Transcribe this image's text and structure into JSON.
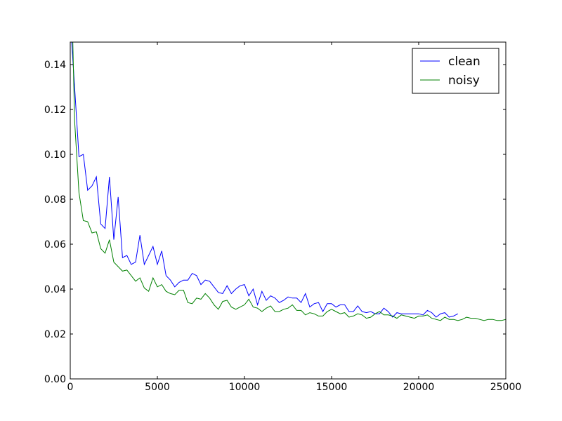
{
  "chart_data": {
    "type": "line",
    "xlim": [
      0,
      25000
    ],
    "xticks": [
      0,
      5000,
      10000,
      15000,
      20000,
      25000
    ],
    "ylim": [
      0,
      0.15
    ],
    "yticks": [
      {
        "value": 0,
        "label": "0.00"
      },
      {
        "value": 0.02,
        "label": "0.02"
      },
      {
        "value": 0.04,
        "label": "0.04"
      },
      {
        "value": 0.06,
        "label": "0.06"
      },
      {
        "value": 0.08,
        "label": "0.08"
      },
      {
        "value": 0.1,
        "label": "0.10"
      },
      {
        "value": 0.12,
        "label": "0.12"
      },
      {
        "value": 0.14,
        "label": "0.14"
      }
    ],
    "legend": "upper right",
    "grid": false,
    "series": [
      {
        "name": "clean",
        "color": "#0000ff",
        "x": [
          0,
          250,
          500,
          750,
          1000,
          1250,
          1500,
          1750,
          2000,
          2250,
          2500,
          2750,
          3000,
          3250,
          3500,
          3750,
          4000,
          4250,
          4500,
          4750,
          5000,
          5250,
          5500,
          5750,
          6000,
          6250,
          6500,
          6750,
          7000,
          7250,
          7500,
          7750,
          8000,
          8250,
          8500,
          8750,
          9000,
          9250,
          9500,
          9750,
          10000,
          10250,
          10500,
          10750,
          11000,
          11250,
          11500,
          11750,
          12000,
          12250,
          12500,
          12750,
          13000,
          13250,
          13500,
          13750,
          14000,
          14250,
          14500,
          14750,
          15000,
          15250,
          15500,
          15750,
          16000,
          16250,
          16500,
          16750,
          17000,
          17250,
          17500,
          17750,
          18000,
          18250,
          18500,
          18750,
          19000,
          19250,
          19500,
          19750,
          20000,
          20250,
          20500,
          20750,
          21000,
          21250,
          21500,
          21750,
          22000,
          22250
        ],
        "values": [
          0.16,
          0.13,
          0.099,
          0.1,
          0.084,
          0.086,
          0.09,
          0.069,
          0.067,
          0.09,
          0.062,
          0.081,
          0.054,
          0.055,
          0.051,
          0.052,
          0.064,
          0.051,
          0.055,
          0.059,
          0.051,
          0.057,
          0.046,
          0.044,
          0.041,
          0.043,
          0.044,
          0.044,
          0.047,
          0.046,
          0.042,
          0.044,
          0.0435,
          0.041,
          0.0385,
          0.038,
          0.0415,
          0.038,
          0.04,
          0.0415,
          0.042,
          0.037,
          0.04,
          0.033,
          0.039,
          0.035,
          0.037,
          0.036,
          0.034,
          0.035,
          0.0365,
          0.036,
          0.036,
          0.034,
          0.038,
          0.032,
          0.0335,
          0.034,
          0.03,
          0.0335,
          0.0335,
          0.032,
          0.033,
          0.033,
          0.03,
          0.03,
          0.0325,
          0.03,
          0.0295,
          0.03,
          0.029,
          0.029,
          0.0315,
          0.03,
          0.0275,
          0.0295,
          0.029,
          0.029,
          0.029,
          0.029,
          0.029,
          0.0285,
          0.0305,
          0.0295,
          0.0275,
          0.029,
          0.0295,
          0.0275,
          0.028,
          0.029
        ]
      },
      {
        "name": "noisy",
        "color": "#008000",
        "x": [
          0,
          250,
          500,
          750,
          1000,
          1250,
          1500,
          1750,
          2000,
          2250,
          2500,
          2750,
          3000,
          3250,
          3500,
          3750,
          4000,
          4250,
          4500,
          4750,
          5000,
          5250,
          5500,
          5750,
          6000,
          6250,
          6500,
          6750,
          7000,
          7250,
          7500,
          7750,
          8000,
          8250,
          8500,
          8750,
          9000,
          9250,
          9500,
          9750,
          10000,
          10250,
          10500,
          10750,
          11000,
          11250,
          11500,
          11750,
          12000,
          12250,
          12500,
          12750,
          13000,
          13250,
          13500,
          13750,
          14000,
          14250,
          14500,
          14750,
          15000,
          15250,
          15500,
          15750,
          16000,
          16250,
          16500,
          16750,
          17000,
          17250,
          17500,
          17750,
          18000,
          18250,
          18500,
          18750,
          19000,
          19250,
          19500,
          19750,
          20000,
          20250,
          20500,
          20750,
          21000,
          21250,
          21500,
          21750,
          22000,
          22250,
          22500,
          22750,
          23000,
          23250,
          23500,
          23750,
          24000,
          24250,
          24500,
          24750,
          25000
        ],
        "values": [
          0.2,
          0.115,
          0.083,
          0.0705,
          0.07,
          0.065,
          0.0655,
          0.058,
          0.056,
          0.062,
          0.052,
          0.05,
          0.048,
          0.0485,
          0.046,
          0.0435,
          0.045,
          0.0405,
          0.039,
          0.045,
          0.041,
          0.042,
          0.039,
          0.038,
          0.0375,
          0.0395,
          0.0395,
          0.034,
          0.0335,
          0.036,
          0.0355,
          0.038,
          0.036,
          0.033,
          0.031,
          0.0345,
          0.035,
          0.032,
          0.031,
          0.032,
          0.033,
          0.0355,
          0.032,
          0.0315,
          0.03,
          0.0315,
          0.0325,
          0.03,
          0.03,
          0.031,
          0.0315,
          0.033,
          0.0305,
          0.0305,
          0.0285,
          0.0295,
          0.029,
          0.028,
          0.028,
          0.03,
          0.031,
          0.03,
          0.029,
          0.0295,
          0.0275,
          0.028,
          0.029,
          0.0285,
          0.027,
          0.0275,
          0.029,
          0.03,
          0.0285,
          0.0285,
          0.028,
          0.027,
          0.0285,
          0.028,
          0.0275,
          0.027,
          0.028,
          0.028,
          0.0285,
          0.027,
          0.0265,
          0.026,
          0.0275,
          0.0265,
          0.0265,
          0.026,
          0.0265,
          0.0275,
          0.027,
          0.027,
          0.0265,
          0.026,
          0.0265,
          0.0265,
          0.026,
          0.026,
          0.0265
        ]
      }
    ]
  }
}
